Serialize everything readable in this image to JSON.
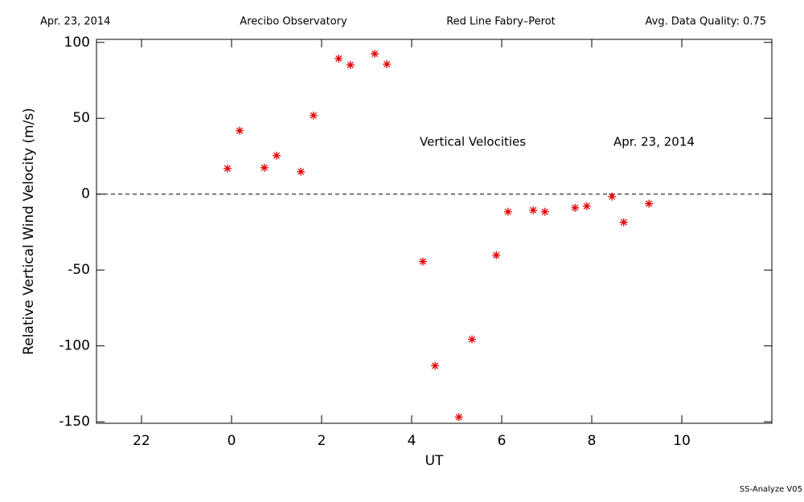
{
  "chart_data": {
    "type": "scatter",
    "header": [
      "Apr. 23, 2014",
      "Arecibo Observatory",
      "Red Line Fabry–Perot",
      "Avg. Data Quality: 0.75"
    ],
    "ylabel": "Relative Vertical Wind Velocity (m/s)",
    "xlabel": "UT",
    "annotations": [
      "Vertical Velocities",
      "Apr. 23, 2014"
    ],
    "footer": "SS-Analyze V05",
    "x": [
      -0.09,
      0.18,
      0.73,
      1.0,
      1.54,
      1.82,
      2.38,
      2.64,
      3.18,
      3.45,
      4.25,
      4.52,
      5.05,
      5.34,
      5.88,
      6.14,
      6.7,
      6.96,
      7.63,
      7.89,
      8.45,
      8.71,
      9.27
    ],
    "values": [
      16.9,
      41.8,
      17.4,
      25.4,
      14.8,
      51.8,
      89.3,
      85.1,
      92.5,
      85.6,
      -44.4,
      -113.1,
      -146.9,
      -95.7,
      -40.2,
      -11.6,
      -10.6,
      -11.6,
      -9.0,
      -7.9,
      -1.6,
      -18.5,
      -6.3
    ],
    "color": "#e00000",
    "xlim": [
      -3,
      12
    ],
    "ylim": [
      -151,
      102
    ],
    "xticks": [
      {
        "value": -2,
        "label": "22"
      },
      0,
      2,
      4,
      6,
      8,
      10
    ],
    "yticks": [
      -150,
      -100,
      -50,
      0,
      50,
      100
    ],
    "hline": 0
  }
}
